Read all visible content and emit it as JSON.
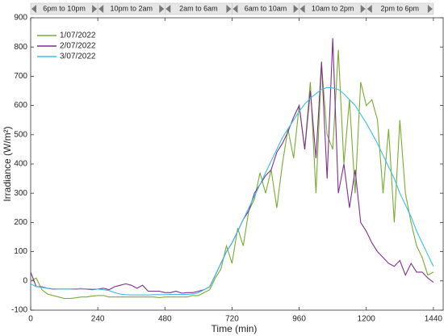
{
  "chart_data": {
    "type": "line",
    "xlabel": "Time (min)",
    "ylabel": "Irradiance (W/m²)",
    "xlim": [
      0,
      1475
    ],
    "ylim": [
      -100,
      900
    ],
    "xticks": [
      0,
      240,
      480,
      720,
      960,
      1200,
      1440
    ],
    "yticks": [
      -100,
      0,
      100,
      200,
      300,
      400,
      500,
      600,
      700,
      800,
      900
    ],
    "legend": "upper left",
    "periods": [
      "6pm to 10pm",
      "10pm to 2am",
      "2am to 6am",
      "6am to 10am",
      "10am to 2pm",
      "2pm to 6pm"
    ],
    "x": [
      0,
      20,
      40,
      60,
      80,
      100,
      120,
      140,
      160,
      180,
      200,
      220,
      240,
      260,
      280,
      300,
      320,
      340,
      360,
      380,
      400,
      420,
      440,
      460,
      480,
      500,
      520,
      540,
      560,
      580,
      600,
      620,
      640,
      660,
      680,
      700,
      720,
      740,
      760,
      780,
      800,
      820,
      840,
      860,
      880,
      900,
      920,
      940,
      960,
      980,
      1000,
      1020,
      1040,
      1060,
      1080,
      1100,
      1120,
      1140,
      1160,
      1180,
      1200,
      1220,
      1240,
      1260,
      1280,
      1300,
      1320,
      1340,
      1360,
      1380,
      1400,
      1420,
      1440
    ],
    "series": [
      {
        "name": "1/07/2022",
        "color": "#77ac30",
        "values": [
          0,
          10,
          -30,
          -45,
          -50,
          -55,
          -60,
          -60,
          -58,
          -55,
          -55,
          -52,
          -50,
          -50,
          -55,
          -55,
          -55,
          -55,
          -55,
          -55,
          -55,
          -55,
          -55,
          -57,
          -55,
          -55,
          -55,
          -55,
          -55,
          -50,
          -50,
          -40,
          -30,
          10,
          40,
          120,
          60,
          180,
          120,
          240,
          280,
          370,
          300,
          380,
          250,
          400,
          520,
          420,
          600,
          450,
          680,
          300,
          740,
          500,
          450,
          790,
          400,
          620,
          300,
          680,
          600,
          620,
          550,
          300,
          520,
          200,
          550,
          300,
          200,
          120,
          80,
          20,
          30
        ]
      },
      {
        "name": "2/07/2022",
        "color": "#7e2f8e",
        "values": [
          30,
          -20,
          -20,
          -25,
          -28,
          -28,
          -28,
          -28,
          -28,
          -27,
          -28,
          -30,
          -28,
          -25,
          -30,
          -20,
          -15,
          -10,
          -15,
          -25,
          -15,
          -35,
          -35,
          -35,
          -40,
          -40,
          -35,
          -42,
          -40,
          -40,
          -35,
          -30,
          -20,
          20,
          60,
          100,
          130,
          170,
          210,
          240,
          300,
          330,
          360,
          380,
          440,
          470,
          510,
          560,
          600,
          450,
          650,
          420,
          750,
          350,
          830,
          300,
          400,
          250,
          380,
          200,
          170,
          130,
          100,
          80,
          60,
          50,
          70,
          20,
          60,
          30,
          30,
          10,
          -5
        ]
      },
      {
        "name": "3/07/2022",
        "color": "#3cbde8",
        "values": [
          -10,
          -20,
          -22,
          -25,
          -27,
          -28,
          -28,
          -28,
          -27,
          -26,
          -27,
          -28,
          -28,
          -30,
          -33,
          -40,
          -45,
          -47,
          -48,
          -48,
          -48,
          -48,
          -47,
          -47,
          -47,
          -46,
          -46,
          -46,
          -46,
          -45,
          -40,
          -30,
          -20,
          20,
          60,
          100,
          130,
          170,
          210,
          250,
          290,
          330,
          370,
          410,
          450,
          490,
          520,
          550,
          580,
          605,
          625,
          640,
          655,
          662,
          660,
          655,
          640,
          620,
          600,
          570,
          540,
          505,
          470,
          430,
          390,
          350,
          300,
          260,
          220,
          170,
          130,
          90,
          50
        ]
      }
    ]
  }
}
